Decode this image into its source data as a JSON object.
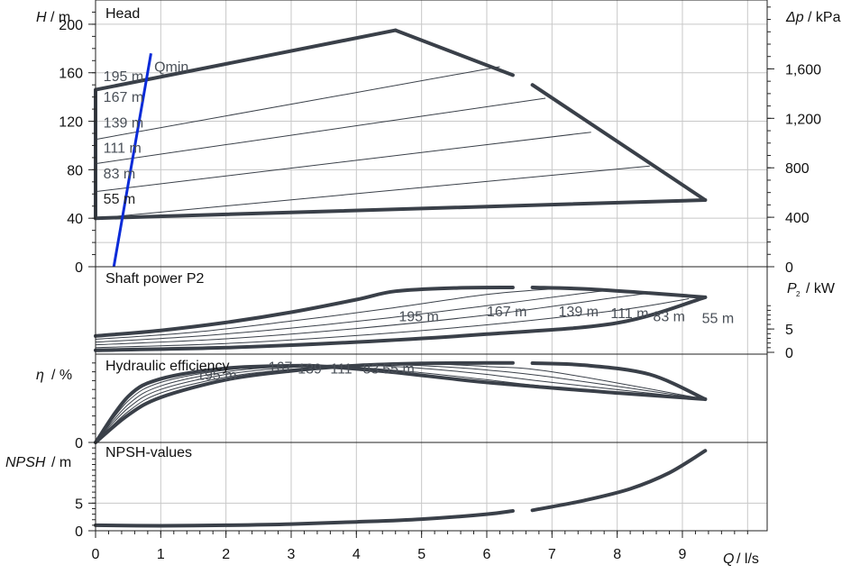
{
  "chart_data": {
    "type": "line",
    "x": {
      "ticks": [
        0,
        1,
        2,
        3,
        4,
        5,
        6,
        7,
        8,
        9
      ],
      "range": [
        0,
        10.3
      ],
      "label": "l/s",
      "symbol": "Q"
    },
    "grid": true,
    "panels": [
      {
        "id": "head",
        "title": "Head",
        "ylabel": {
          "symbol": "H",
          "unit": "m"
        },
        "ylim": [
          0,
          220
        ],
        "yticks": [
          0,
          40,
          80,
          120,
          160,
          200
        ],
        "right_axis": {
          "symbol": "Δp",
          "unit": "kPa",
          "ticks": [
            0,
            400,
            800,
            1200,
            1600
          ],
          "range": [
            0,
            2157
          ]
        },
        "envelope": [
          [
            0,
            40
          ],
          [
            0,
            146
          ],
          [
            4.6,
            195
          ],
          [
            6.4,
            158
          ]
        ],
        "envelope_right": [
          [
            6.7,
            150
          ],
          [
            9.35,
            55
          ]
        ],
        "bottom_line": [
          [
            0,
            40
          ],
          [
            9.35,
            55
          ]
        ],
        "impeller_curves": [
          {
            "name": "167 m",
            "points": [
              [
                0,
                105
              ],
              [
                6.2,
                165
              ]
            ]
          },
          {
            "name": "139 m",
            "points": [
              [
                0,
                85
              ],
              [
                6.9,
                139
              ]
            ]
          },
          {
            "name": "111 m",
            "points": [
              [
                0,
                62
              ],
              [
                7.6,
                111
              ]
            ]
          },
          {
            "name": "83 m",
            "points": [
              [
                0,
                40
              ],
              [
                8.5,
                83
              ]
            ]
          }
        ],
        "qmin_line": [
          [
            0.28,
            0
          ],
          [
            0.85,
            176
          ]
        ],
        "labels": [
          {
            "text": "195 m",
            "x": 0.12,
            "y": 153
          },
          {
            "text": "Qmin",
            "x": 0.9,
            "y": 161
          },
          {
            "text": "167 m",
            "x": 0.12,
            "y": 136
          },
          {
            "text": "139 m",
            "x": 0.12,
            "y": 115
          },
          {
            "text": "111 m",
            "x": 0.12,
            "y": 94
          },
          {
            "text": "83 m",
            "x": 0.12,
            "y": 73
          },
          {
            "text": "55 m",
            "x": 0.12,
            "y": 52
          }
        ]
      },
      {
        "id": "power",
        "title": "Shaft power P2",
        "ylabel_right": {
          "symbol": "P",
          "sub": "2",
          "unit": "kW"
        },
        "right_ticks": [
          0,
          5
        ],
        "right_range": [
          0,
          17
        ],
        "curves": [
          {
            "name": "195 m",
            "thick": true,
            "points": [
              [
                0,
                3.5
              ],
              [
                1,
                4.7
              ],
              [
                2,
                6.4
              ],
              [
                3,
                8.6
              ],
              [
                4,
                11.3
              ],
              [
                4.6,
                13.1
              ],
              [
                5.5,
                13.8
              ],
              [
                6.4,
                13.9
              ]
            ]
          },
          {
            "name": "195 m b",
            "thick": true,
            "points": [
              [
                6.7,
                13.9
              ],
              [
                7.5,
                13.6
              ],
              [
                8.5,
                12.7
              ],
              [
                9.35,
                11.8
              ]
            ]
          },
          {
            "name": "167 m",
            "thick": false,
            "points": [
              [
                0,
                2.8
              ],
              [
                1.5,
                4.3
              ],
              [
                3,
                6.7
              ],
              [
                4.5,
                9.4
              ],
              [
                6,
                12.4
              ],
              [
                7,
                13.6
              ]
            ]
          },
          {
            "name": "139 m",
            "thick": false,
            "points": [
              [
                0,
                2.2
              ],
              [
                1.5,
                3.4
              ],
              [
                3,
                5.2
              ],
              [
                4.5,
                7.4
              ],
              [
                6,
                10.0
              ],
              [
                7.5,
                12.7
              ],
              [
                7.9,
                13.3
              ]
            ]
          },
          {
            "name": "111 m",
            "thick": false,
            "points": [
              [
                0,
                1.6
              ],
              [
                2,
                2.9
              ],
              [
                4,
                5.1
              ],
              [
                6,
                8.0
              ],
              [
                8,
                11.8
              ],
              [
                8.5,
                12.7
              ]
            ]
          },
          {
            "name": "83 m",
            "thick": false,
            "points": [
              [
                0,
                1.0
              ],
              [
                2,
                1.9
              ],
              [
                4,
                3.6
              ],
              [
                6,
                5.9
              ],
              [
                8,
                9.0
              ],
              [
                9.1,
                11.5
              ]
            ]
          },
          {
            "name": "55 m",
            "thick": true,
            "points": [
              [
                0,
                0.45
              ],
              [
                2,
                1.0
              ],
              [
                4,
                2.2
              ],
              [
                6,
                3.9
              ],
              [
                8,
                6.3
              ],
              [
                9.35,
                11.8
              ]
            ]
          }
        ],
        "labels": [
          {
            "text": "195 m",
            "x": 4.65,
            "y": 6.7
          },
          {
            "text": "167 m",
            "x": 6.0,
            "y": 7.7
          },
          {
            "text": "139 m",
            "x": 7.1,
            "y": 7.7
          },
          {
            "text": "111 m",
            "x": 7.9,
            "y": 7.3
          },
          {
            "text": "83 m",
            "x": 8.55,
            "y": 6.7
          },
          {
            "text": "55 m",
            "x": 9.3,
            "y": 6.3
          }
        ]
      },
      {
        "id": "efficiency",
        "title": "Hydraulic efficiency",
        "ylabel": {
          "symbol": "η",
          "unit": "%"
        },
        "yticks": [
          0
        ],
        "range": [
          0,
          100
        ],
        "curves": [
          {
            "name": "195 m",
            "thick": true,
            "points": [
              [
                0,
                0
              ],
              [
                0.5,
                31
              ],
              [
                1,
                51
              ],
              [
                2,
                71
              ],
              [
                3,
                81
              ],
              [
                4,
                87
              ],
              [
                5,
                89.5
              ],
              [
                6,
                90
              ],
              [
                6.4,
                90
              ]
            ]
          },
          {
            "name": "195 m b",
            "thick": true,
            "points": [
              [
                6.7,
                89.8
              ],
              [
                7.5,
                87.5
              ],
              [
                8.5,
                77
              ],
              [
                9.35,
                49
              ]
            ]
          },
          {
            "name": "167 m",
            "thick": false,
            "points": [
              [
                0,
                0
              ],
              [
                0.5,
                35
              ],
              [
                1,
                56
              ],
              [
                2,
                74
              ],
              [
                3,
                83
              ],
              [
                4,
                88
              ],
              [
                5,
                89
              ],
              [
                6,
                86
              ],
              [
                7,
                80
              ],
              [
                9.35,
                49
              ]
            ]
          },
          {
            "name": "139 m",
            "thick": false,
            "points": [
              [
                0,
                0
              ],
              [
                0.5,
                39
              ],
              [
                1,
                60
              ],
              [
                2,
                77
              ],
              [
                3,
                85
              ],
              [
                4,
                88
              ],
              [
                5,
                87
              ],
              [
                6,
                82
              ],
              [
                7,
                74
              ],
              [
                9.35,
                49
              ]
            ]
          },
          {
            "name": "111 m",
            "thick": false,
            "points": [
              [
                0,
                0
              ],
              [
                0.5,
                43
              ],
              [
                1,
                64
              ],
              [
                2,
                80
              ],
              [
                3,
                86
              ],
              [
                4,
                87.5
              ],
              [
                5,
                84
              ],
              [
                6,
                77
              ],
              [
                7,
                68
              ],
              [
                9.35,
                49
              ]
            ]
          },
          {
            "name": "83 m",
            "thick": false,
            "points": [
              [
                0,
                0
              ],
              [
                0.5,
                47
              ],
              [
                1,
                68
              ],
              [
                2,
                82
              ],
              [
                3,
                86.5
              ],
              [
                4,
                85
              ],
              [
                5,
                79
              ],
              [
                6,
                71
              ],
              [
                7,
                63
              ],
              [
                9.35,
                49
              ]
            ]
          },
          {
            "name": "55 m",
            "thick": true,
            "points": [
              [
                0,
                0
              ],
              [
                0.5,
                52
              ],
              [
                1,
                72
              ],
              [
                2,
                84
              ],
              [
                3,
                86.8
              ],
              [
                3.5,
                86
              ],
              [
                4.5,
                80
              ],
              [
                6,
                68
              ],
              [
                8,
                56
              ],
              [
                9.35,
                49
              ]
            ]
          }
        ],
        "labels": [
          {
            "text": "195 m",
            "x": 1.55,
            "y": 71
          },
          {
            "text": "167",
            "x": 2.65,
            "y": 80
          },
          {
            "text": "139",
            "x": 3.1,
            "y": 78
          },
          {
            "text": "111",
            "x": 3.6,
            "y": 78
          },
          {
            "text": "83",
            "x": 4.1,
            "y": 78
          },
          {
            "text": "55 m",
            "x": 4.4,
            "y": 78
          }
        ]
      },
      {
        "id": "npsh",
        "title": "NPSH-values",
        "ylabel": {
          "symbol": "NPSH",
          "unit": "m"
        },
        "yticks": [
          0,
          5
        ],
        "range": [
          0,
          16
        ],
        "curves": [
          {
            "name": "npsh a",
            "thick": true,
            "points": [
              [
                0,
                1.0
              ],
              [
                1,
                0.9
              ],
              [
                2,
                1.0
              ],
              [
                3,
                1.2
              ],
              [
                4,
                1.6
              ],
              [
                5,
                2.1
              ],
              [
                6,
                3.0
              ],
              [
                6.4,
                3.6
              ]
            ]
          },
          {
            "name": "npsh b",
            "thick": true,
            "points": [
              [
                6.7,
                3.7
              ],
              [
                7.5,
                5.5
              ],
              [
                8.2,
                7.6
              ],
              [
                8.8,
                10.5
              ],
              [
                9.35,
                14.5
              ]
            ]
          }
        ]
      }
    ]
  },
  "text": {
    "head_title": "Head",
    "power_title": "Shaft power P2",
    "eff_title": "Hydraulic efficiency",
    "npsh_title": "NPSH-values",
    "h_symbol": "H",
    "h_unit": "/ m",
    "dp_symbol": "Δp",
    "dp_unit": "/ kPa",
    "p_symbol": "P",
    "p_sub": "2",
    "p_unit": "/ kW",
    "eta_symbol": "η",
    "eta_unit": "/ %",
    "npsh_symbol": "NPSH",
    "npsh_unit": "/ m",
    "q_symbol": "Q",
    "q_unit": "/ l/s"
  }
}
